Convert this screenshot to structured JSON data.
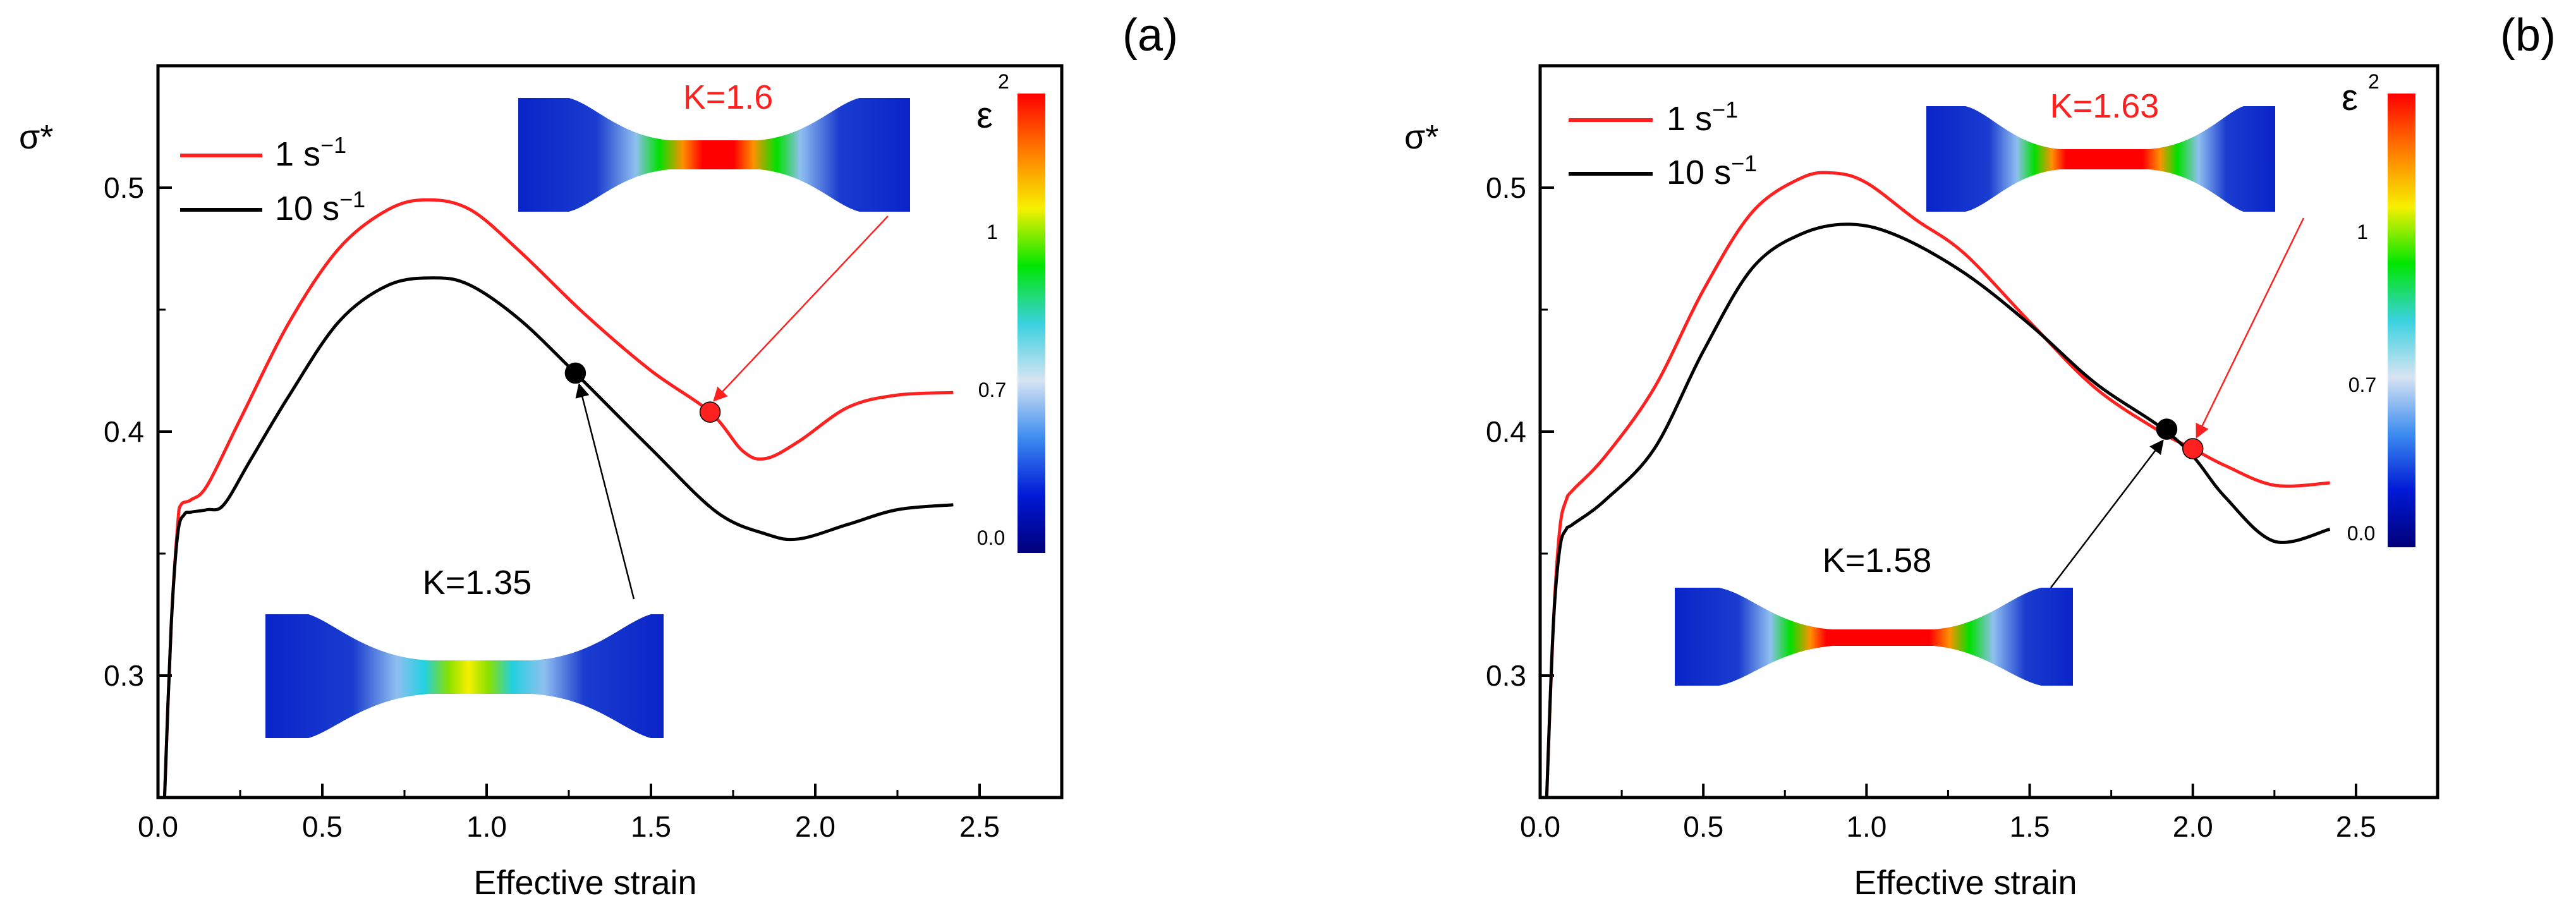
{
  "colors": {
    "red": "#ff2020",
    "black": "#000000",
    "axis": "#000000"
  },
  "colorbar": {
    "symbol": "ε",
    "ticks": [
      "2",
      "1",
      "0.7",
      "0.0"
    ],
    "stops": [
      "#00007a",
      "#0019d6",
      "#3c8cf0",
      "#d8e4f2",
      "#39d1df",
      "#00e600",
      "#f7f000",
      "#ff7a00",
      "#ff0000"
    ]
  },
  "chart_data": [
    {
      "type": "line",
      "panel_label": "(a)",
      "xlabel": "Effective strain",
      "ylabel": "σ*",
      "xlim": [
        0,
        2.75
      ],
      "ylim": [
        0.25,
        0.55
      ],
      "xticks": [
        "0.0",
        "0.5",
        "1.0",
        "1.5",
        "2.0",
        "2.5"
      ],
      "yticks": [
        "0.3",
        "0.4",
        "0.5"
      ],
      "legend": [
        {
          "label": "1 s",
          "sup": "−1",
          "color": "#ff2020"
        },
        {
          "label": "10 s",
          "sup": "−1",
          "color": "#000000"
        }
      ],
      "series": [
        {
          "name": "1 s−1",
          "color": "#ff2020",
          "x": [
            0.02,
            0.04,
            0.06,
            0.07,
            0.1,
            0.15,
            0.25,
            0.4,
            0.55,
            0.7,
            0.82,
            0.95,
            1.1,
            1.3,
            1.5,
            1.68,
            1.78,
            1.85,
            1.95,
            2.1,
            2.25,
            2.42
          ],
          "y": [
            0.25,
            0.32,
            0.362,
            0.37,
            0.372,
            0.378,
            0.405,
            0.445,
            0.475,
            0.491,
            0.495,
            0.491,
            0.474,
            0.448,
            0.425,
            0.408,
            0.392,
            0.389,
            0.396,
            0.41,
            0.415,
            0.416
          ]
        },
        {
          "name": "10 s−1",
          "color": "#000000",
          "x": [
            0.02,
            0.04,
            0.06,
            0.08,
            0.1,
            0.15,
            0.2,
            0.28,
            0.4,
            0.55,
            0.7,
            0.84,
            0.95,
            1.1,
            1.27,
            1.5,
            1.7,
            1.85,
            1.95,
            2.1,
            2.25,
            2.42
          ],
          "y": [
            0.25,
            0.32,
            0.358,
            0.366,
            0.367,
            0.368,
            0.37,
            0.388,
            0.415,
            0.445,
            0.46,
            0.463,
            0.46,
            0.446,
            0.424,
            0.393,
            0.367,
            0.358,
            0.356,
            0.362,
            0.368,
            0.37
          ]
        }
      ],
      "annotations": [
        {
          "label": "K=1.6",
          "color": "#ff2020",
          "x": 1.68,
          "y": 0.408
        },
        {
          "label": "K=1.35",
          "color": "#000000",
          "x": 1.27,
          "y": 0.424
        }
      ]
    },
    {
      "type": "line",
      "panel_label": "(b)",
      "xlabel": "Effective strain",
      "ylabel": "σ*",
      "xlim": [
        0,
        2.75
      ],
      "ylim": [
        0.25,
        0.55
      ],
      "xticks": [
        "0.0",
        "0.5",
        "1.0",
        "1.5",
        "2.0",
        "2.5"
      ],
      "yticks": [
        "0.3",
        "0.4",
        "0.5"
      ],
      "legend": [
        {
          "label": "1 s",
          "sup": "−1",
          "color": "#ff2020"
        },
        {
          "label": "10 s",
          "sup": "−1",
          "color": "#000000"
        }
      ],
      "series": [
        {
          "name": "1 s−1",
          "color": "#ff2020",
          "x": [
            0.02,
            0.04,
            0.06,
            0.08,
            0.1,
            0.2,
            0.35,
            0.5,
            0.65,
            0.8,
            0.9,
            1.0,
            1.15,
            1.3,
            1.5,
            1.7,
            1.9,
            2.0,
            2.1,
            2.25,
            2.42
          ],
          "y": [
            0.25,
            0.32,
            0.36,
            0.372,
            0.376,
            0.39,
            0.418,
            0.458,
            0.49,
            0.504,
            0.506,
            0.502,
            0.487,
            0.473,
            0.445,
            0.418,
            0.4,
            0.393,
            0.386,
            0.378,
            0.379
          ]
        },
        {
          "name": "10 s−1",
          "color": "#000000",
          "x": [
            0.02,
            0.04,
            0.06,
            0.08,
            0.1,
            0.2,
            0.35,
            0.5,
            0.65,
            0.8,
            0.95,
            1.1,
            1.3,
            1.5,
            1.7,
            1.9,
            2.0,
            2.1,
            2.25,
            2.42
          ],
          "y": [
            0.25,
            0.32,
            0.352,
            0.36,
            0.362,
            0.372,
            0.393,
            0.433,
            0.467,
            0.481,
            0.485,
            0.48,
            0.465,
            0.444,
            0.42,
            0.402,
            0.39,
            0.373,
            0.355,
            0.36
          ]
        }
      ],
      "annotations": [
        {
          "label": "K=1.63",
          "color": "#ff2020",
          "x": 2.0,
          "y": 0.393
        },
        {
          "label": "K=1.58",
          "color": "#000000",
          "x": 1.92,
          "y": 0.401
        }
      ]
    }
  ]
}
